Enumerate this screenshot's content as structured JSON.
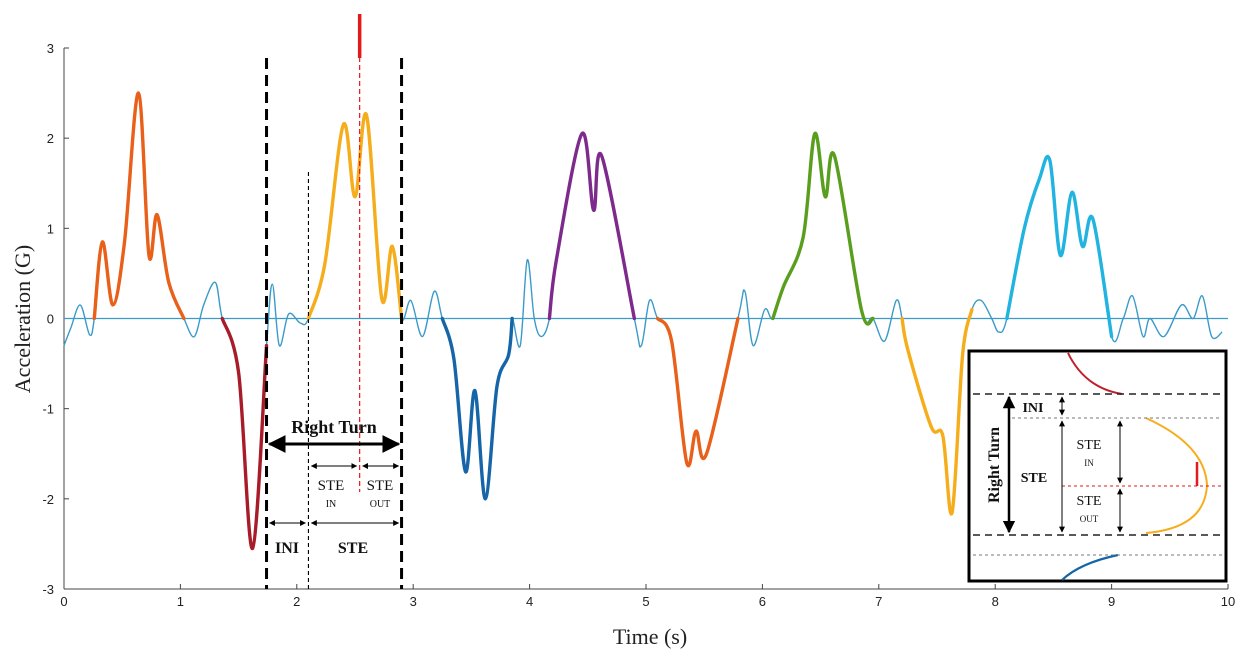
{
  "chart_data": {
    "type": "line",
    "title": "",
    "xlabel": "Time (s)",
    "ylabel": "Acceleration (G)",
    "xlim": [
      0,
      10
    ],
    "ylim": [
      -3,
      3
    ],
    "xticks": [
      0,
      1,
      2,
      3,
      4,
      5,
      6,
      7,
      8,
      9,
      10
    ],
    "yticks": [
      -3,
      -2,
      -1,
      0,
      1,
      2,
      3
    ],
    "grid": false,
    "baseline": 0,
    "series": [
      {
        "color": "#3a9bc9",
        "points": [
          [
            0,
            -0.3
          ],
          [
            0.06,
            -0.1
          ],
          [
            0.14,
            0.15
          ],
          [
            0.22,
            -0.18
          ],
          [
            0.26,
            0
          ],
          [
            0.33,
            0.85
          ],
          [
            0.42,
            0.15
          ],
          [
            0.52,
            0.85
          ],
          [
            0.64,
            2.5
          ],
          [
            0.73,
            0.7
          ],
          [
            0.8,
            1.15
          ],
          [
            0.9,
            0.4
          ],
          [
            1.03,
            0
          ],
          [
            1.12,
            -0.2
          ],
          [
            1.2,
            0.15
          ],
          [
            1.3,
            0.4
          ],
          [
            1.36,
            0
          ],
          [
            1.5,
            -0.6
          ],
          [
            1.62,
            -2.55
          ],
          [
            1.74,
            -0.3
          ],
          [
            1.79,
            0.38
          ],
          [
            1.85,
            -0.3
          ],
          [
            1.93,
            0.05
          ],
          [
            2.03,
            -0.05
          ],
          [
            2.1,
            0
          ],
          [
            2.24,
            0.6
          ],
          [
            2.4,
            2.15
          ],
          [
            2.5,
            1.35
          ],
          [
            2.6,
            2.25
          ],
          [
            2.73,
            0.22
          ],
          [
            2.82,
            0.8
          ],
          [
            2.9,
            0
          ],
          [
            2.98,
            0.2
          ],
          [
            3.08,
            -0.2
          ],
          [
            3.18,
            0.3
          ],
          [
            3.25,
            0
          ],
          [
            3.35,
            -0.45
          ],
          [
            3.45,
            -1.7
          ],
          [
            3.53,
            -0.8
          ],
          [
            3.62,
            -2
          ],
          [
            3.72,
            -0.75
          ],
          [
            3.82,
            -0.4
          ],
          [
            3.85,
            0
          ],
          [
            3.92,
            -0.3
          ],
          [
            3.98,
            0.65
          ],
          [
            4.04,
            0
          ],
          [
            4.1,
            -0.2
          ],
          [
            4.17,
            0
          ],
          [
            4.23,
            0.65
          ],
          [
            4.45,
            2.05
          ],
          [
            4.55,
            1.2
          ],
          [
            4.62,
            1.8
          ],
          [
            4.9,
            0
          ],
          [
            4.96,
            -0.3
          ],
          [
            5.03,
            0.2
          ],
          [
            5.1,
            0
          ],
          [
            5.22,
            -0.25
          ],
          [
            5.35,
            -1.6
          ],
          [
            5.43,
            -1.25
          ],
          [
            5.52,
            -1.5
          ],
          [
            5.79,
            0
          ],
          [
            5.85,
            0.3
          ],
          [
            5.92,
            -0.3
          ],
          [
            6.02,
            0.1
          ],
          [
            6.09,
            0
          ],
          [
            6.18,
            0.35
          ],
          [
            6.35,
            0.9
          ],
          [
            6.45,
            2.05
          ],
          [
            6.54,
            1.35
          ],
          [
            6.62,
            1.8
          ],
          [
            6.85,
            0.1
          ],
          [
            6.95,
            0
          ],
          [
            7.05,
            -0.25
          ],
          [
            7.15,
            0.2
          ],
          [
            7.2,
            0
          ],
          [
            7.25,
            -0.35
          ],
          [
            7.45,
            -1.2
          ],
          [
            7.55,
            -1.3
          ],
          [
            7.63,
            -2.15
          ],
          [
            7.72,
            -0.4
          ],
          [
            7.8,
            0.1
          ],
          [
            7.88,
            0.2
          ],
          [
            7.97,
            0
          ],
          [
            8.03,
            -0.15
          ],
          [
            8.1,
            0
          ],
          [
            8.25,
            1
          ],
          [
            8.38,
            1.55
          ],
          [
            8.47,
            1.75
          ],
          [
            8.56,
            0.7
          ],
          [
            8.66,
            1.4
          ],
          [
            8.75,
            0.8
          ],
          [
            8.84,
            1.1
          ],
          [
            9.0,
            -0.2
          ],
          [
            9.1,
            0
          ],
          [
            9.18,
            0.25
          ],
          [
            9.27,
            -0.2
          ],
          [
            9.33,
            0
          ],
          [
            9.45,
            -0.2
          ],
          [
            9.6,
            0.15
          ],
          [
            9.7,
            0
          ],
          [
            9.78,
            0.25
          ],
          [
            9.86,
            -0.2
          ],
          [
            9.95,
            -0.15
          ]
        ]
      }
    ],
    "segments": [
      {
        "color": "#e8601a",
        "x_start": 0.26,
        "x_end": 1.03
      },
      {
        "color": "#a81c2a",
        "x_start": 1.36,
        "x_end": 1.74
      },
      {
        "color": "#f5ad1b",
        "x_start": 2.1,
        "x_end": 2.9
      },
      {
        "color": "#1565a8",
        "x_start": 3.25,
        "x_end": 3.85
      },
      {
        "color": "#7d2a8c",
        "x_start": 4.17,
        "x_end": 4.9
      },
      {
        "color": "#e8601a",
        "x_start": 5.1,
        "x_end": 5.79
      },
      {
        "color": "#5a9e1e",
        "x_start": 6.09,
        "x_end": 6.95
      },
      {
        "color": "#f5ad1b",
        "x_start": 7.2,
        "x_end": 7.8
      },
      {
        "color": "#22b4e0",
        "x_start": 8.1,
        "x_end": 9.0
      },
      {
        "color": "#7d2a8c",
        "x_start": 9.33,
        "x_end": 9.38
      },
      {
        "color": "#7d2a8c",
        "x_start": 9.7,
        "x_end": 9.75
      }
    ],
    "markers": {
      "thick_dashed_x": [
        1.74,
        2.9
      ],
      "thin_dashed_x": 2.1,
      "red_dashed_x": 2.54,
      "red_marker_color": "#e31a1c"
    },
    "annotations": {
      "right_turn": "Right Turn",
      "ste": "STE",
      "ste_in_top": "STE",
      "ste_in_sub": "IN",
      "ste_out_top": "STE",
      "ste_out_sub": "OUT",
      "ini": "INI"
    },
    "inset": {
      "right_turn": "Right Turn",
      "ini": "INI",
      "ste": "STE",
      "ste_in_top": "STE",
      "ste_in_sub": "IN",
      "ste_out_top": "STE",
      "ste_out_sub": "OUT"
    }
  }
}
